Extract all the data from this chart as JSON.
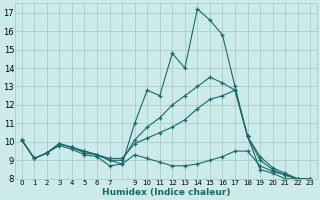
{
  "xlabel": "Humidex (Indice chaleur)",
  "bg_color": "#cceaea",
  "grid_color": "#aacccc",
  "line_color": "#1a6868",
  "xlim": [
    -0.5,
    23.5
  ],
  "ylim": [
    8,
    17.5
  ],
  "xtick_positions": [
    0,
    1,
    2,
    3,
    4,
    5,
    6,
    7,
    8,
    9,
    10,
    11,
    12,
    13,
    14,
    15,
    16,
    17,
    18,
    19,
    20,
    21,
    22,
    23
  ],
  "xtick_labels": [
    "0",
    "1",
    "2",
    "3",
    "4",
    "5",
    "6",
    "7",
    "",
    "9",
    "10",
    "11",
    "12",
    "13",
    "14",
    "15",
    "16",
    "17",
    "18",
    "19",
    "20",
    "21",
    "22",
    "23"
  ],
  "yticks": [
    8,
    9,
    10,
    11,
    12,
    13,
    14,
    15,
    16,
    17
  ],
  "lines": [
    {
      "x": [
        0,
        1,
        2,
        3,
        4,
        5,
        6,
        7,
        8,
        9,
        10,
        11,
        12,
        13,
        14,
        15,
        16,
        17,
        18,
        19,
        20,
        21,
        22,
        23
      ],
      "y": [
        10.1,
        9.1,
        9.4,
        9.8,
        9.6,
        9.3,
        9.2,
        8.7,
        8.8,
        11.0,
        12.8,
        12.5,
        14.8,
        14.0,
        17.2,
        16.6,
        15.8,
        13.0,
        10.3,
        8.5,
        8.3,
        8.0,
        8.0,
        8.0
      ]
    },
    {
      "x": [
        0,
        1,
        2,
        3,
        4,
        5,
        6,
        7,
        8,
        9,
        10,
        11,
        12,
        13,
        14,
        15,
        16,
        17,
        18,
        19,
        20,
        21,
        22,
        23
      ],
      "y": [
        10.1,
        9.1,
        9.4,
        9.9,
        9.7,
        9.4,
        9.3,
        9.0,
        9.0,
        10.1,
        10.8,
        11.3,
        12.0,
        12.5,
        13.0,
        13.5,
        13.2,
        12.8,
        10.3,
        9.0,
        8.5,
        8.2,
        8.0,
        8.0
      ]
    },
    {
      "x": [
        0,
        1,
        2,
        3,
        4,
        5,
        6,
        7,
        8,
        9,
        10,
        11,
        12,
        13,
        14,
        15,
        16,
        17,
        18,
        19,
        20,
        21,
        22,
        23
      ],
      "y": [
        10.1,
        9.1,
        9.4,
        9.9,
        9.7,
        9.5,
        9.3,
        9.1,
        9.1,
        9.9,
        10.2,
        10.5,
        10.8,
        11.2,
        11.8,
        12.3,
        12.5,
        12.8,
        10.3,
        9.2,
        8.6,
        8.3,
        8.0,
        8.0
      ]
    },
    {
      "x": [
        0,
        1,
        2,
        3,
        4,
        5,
        6,
        7,
        8,
        9,
        10,
        11,
        12,
        13,
        14,
        15,
        16,
        17,
        18,
        19,
        20,
        21,
        22,
        23
      ],
      "y": [
        10.1,
        9.1,
        9.4,
        9.9,
        9.7,
        9.5,
        9.3,
        9.0,
        8.8,
        9.3,
        9.1,
        8.9,
        8.7,
        8.7,
        8.8,
        9.0,
        9.2,
        9.5,
        9.5,
        8.7,
        8.4,
        8.2,
        8.0,
        8.0
      ]
    }
  ]
}
